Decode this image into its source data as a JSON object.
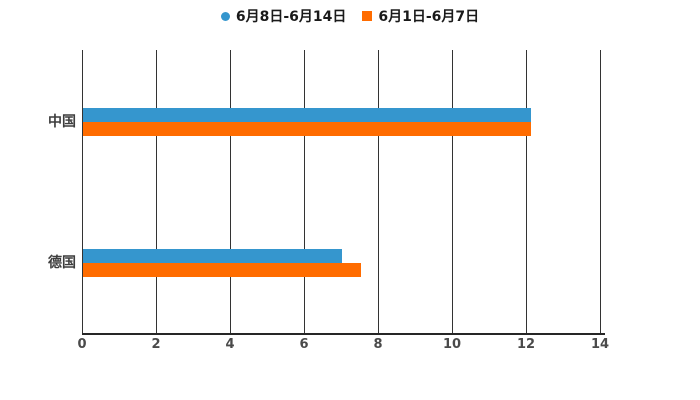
{
  "chart_data": {
    "type": "bar",
    "orientation": "horizontal",
    "title": "",
    "xlabel": "",
    "ylabel": "",
    "categories": [
      "中国",
      "德国"
    ],
    "series": [
      {
        "name": "6月8日-6月14日",
        "color": "#3596ce",
        "marker": "circle",
        "values": [
          12.1,
          7.0
        ]
      },
      {
        "name": "6月1日-6月7日",
        "color": "#ff6c00",
        "marker": "square",
        "values": [
          12.1,
          7.5
        ]
      }
    ],
    "xlim": [
      0,
      14.1
    ],
    "xticks": [
      0,
      2,
      4,
      6,
      8,
      10,
      12,
      14
    ],
    "grid": true,
    "gridline_color": "#333333",
    "axis_color": "#262626",
    "legend_position": "top-center"
  }
}
